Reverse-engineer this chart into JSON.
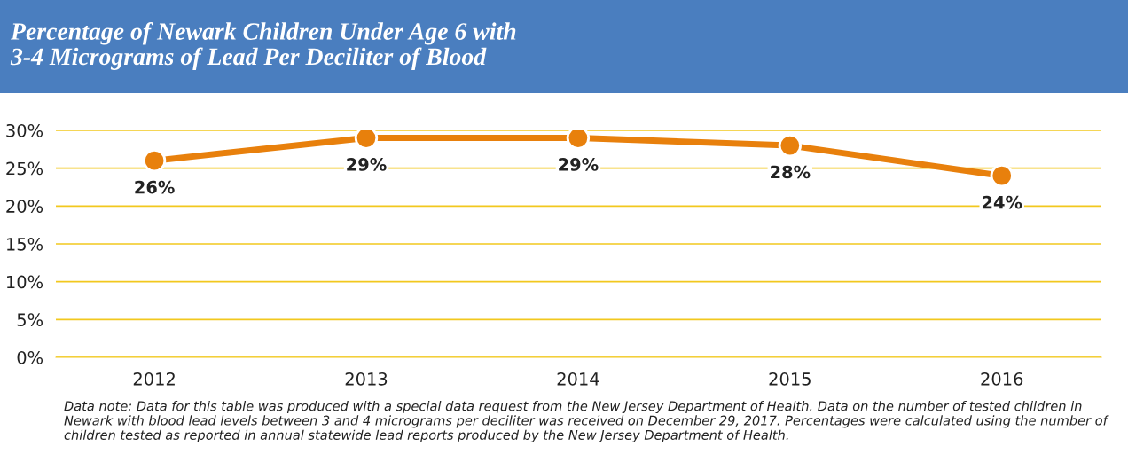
{
  "chart_data": {
    "type": "line",
    "title": "Percentage of Newark Children Under Age 6 with\n3-4 Micrograms of Lead Per Deciliter of Blood",
    "categories": [
      "2012",
      "2013",
      "2014",
      "2015",
      "2016"
    ],
    "series": [
      {
        "color": "#e8800c",
        "values": [
          26,
          29,
          29,
          28,
          24
        ],
        "value_labels": [
          "26%",
          "29%",
          "29%",
          "28%",
          "24%"
        ]
      }
    ],
    "ylim": [
      0,
      30
    ],
    "yticks": [
      {
        "value": 0,
        "label": "0%"
      },
      {
        "value": 5,
        "label": "5%"
      },
      {
        "value": 10,
        "label": "10%"
      },
      {
        "value": 15,
        "label": "15%"
      },
      {
        "value": 20,
        "label": "20%"
      },
      {
        "value": 25,
        "label": "25%"
      },
      {
        "value": 30,
        "label": "30%"
      }
    ],
    "grid": "y",
    "marker": "circle",
    "line_style": "solid",
    "annotations": [
      "Data note: Data for this table was produced with a special data request from the New Jersey Department of Health. Data on the number of tested children in Newark with blood lead levels between 3 and 4 micrograms per deciliter was received on December 29, 2017. Percentages were calculated using the number of children tested as reported in annual statewide lead reports produced by the New Jersey Department of Health."
    ]
  }
}
